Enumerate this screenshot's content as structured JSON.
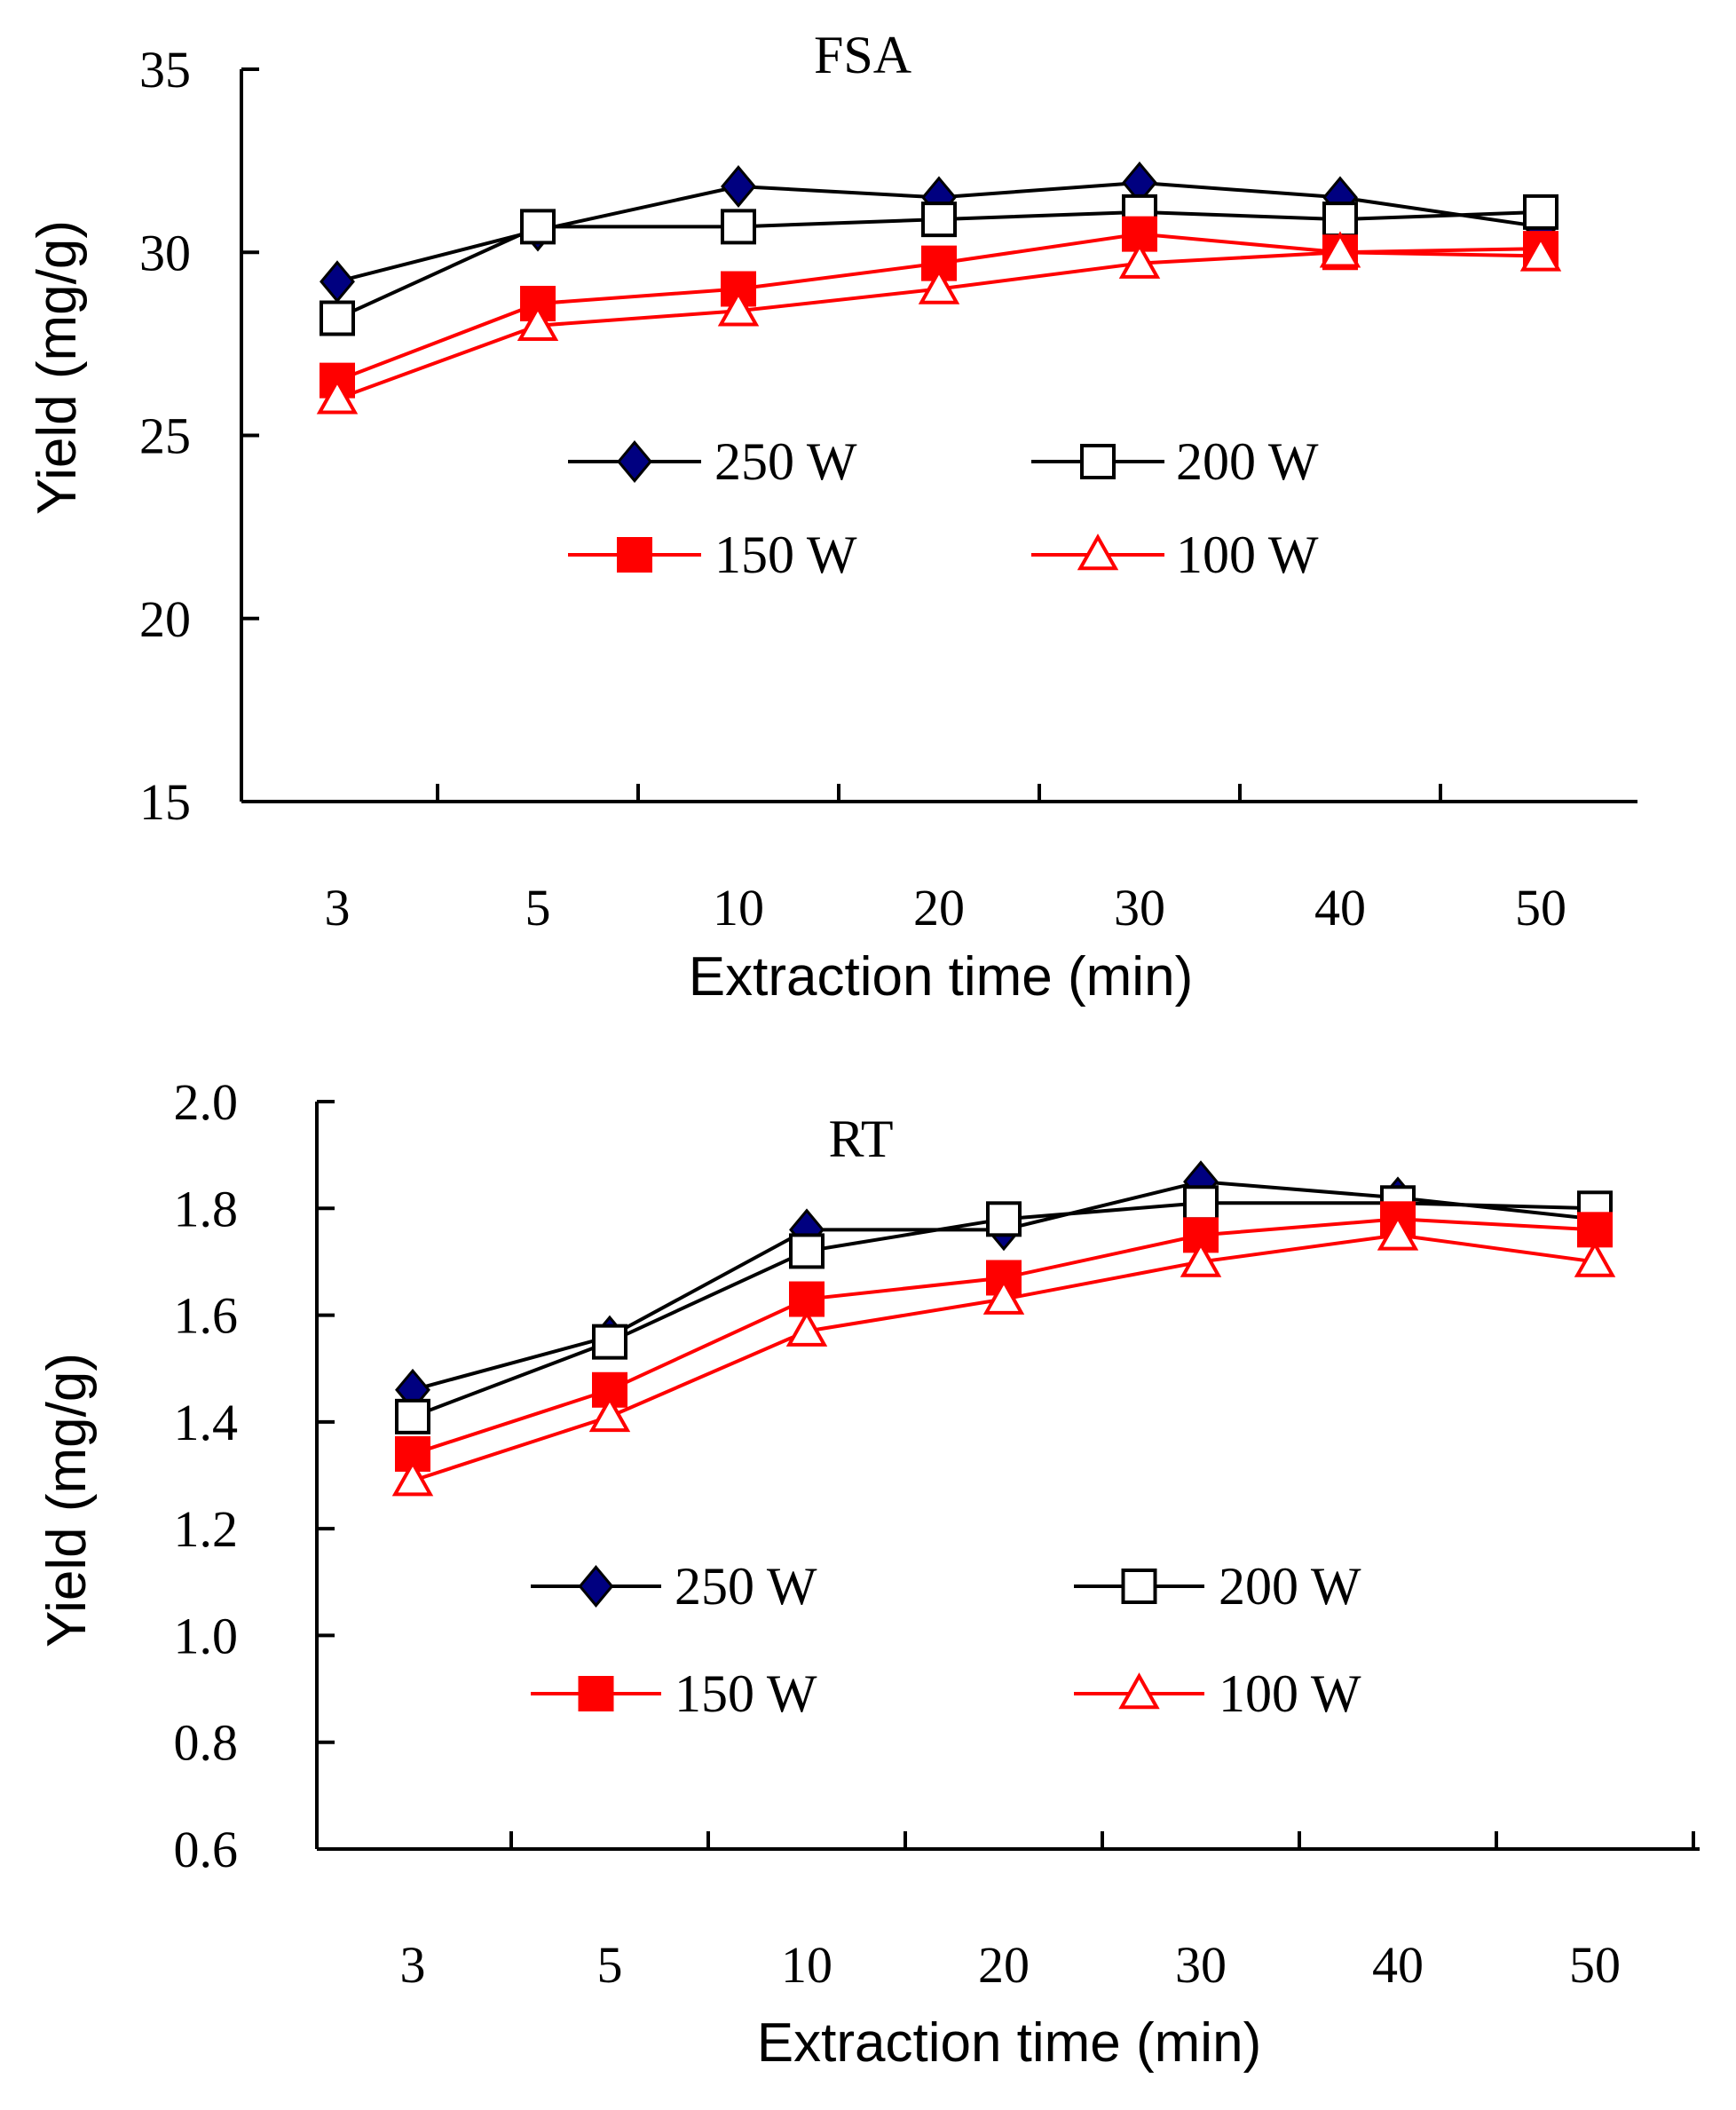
{
  "colors": {
    "black": "#000000",
    "red": "#ff0000",
    "navy": "#000080",
    "white": "#ffffff"
  },
  "chart_data": [
    {
      "type": "line",
      "title": "FSA",
      "xlabel": "Extraction time (min)",
      "ylabel": "Yield (mg/g)",
      "categories": [
        "3",
        "5",
        "10",
        "20",
        "30",
        "40",
        "50"
      ],
      "ylim": [
        15,
        35
      ],
      "yticks": [
        15,
        20,
        25,
        30,
        35
      ],
      "ytick_labels": [
        "15",
        "20",
        "25",
        "30",
        "35"
      ],
      "grid": false,
      "legend": "center",
      "series": [
        {
          "name": "250 W",
          "marker": "diamond",
          "color": "#000000",
          "fill": "#000080",
          "values": [
            29.2,
            30.6,
            31.8,
            31.5,
            31.9,
            31.5,
            30.7
          ]
        },
        {
          "name": "200 W",
          "marker": "square-open",
          "color": "#000000",
          "fill": "#ffffff",
          "values": [
            28.2,
            30.7,
            30.7,
            30.9,
            31.1,
            30.9,
            31.1
          ]
        },
        {
          "name": "150 W",
          "marker": "square",
          "color": "#ff0000",
          "fill": "#ff0000",
          "values": [
            26.5,
            28.6,
            29.0,
            29.7,
            30.5,
            30.0,
            30.1
          ]
        },
        {
          "name": "100 W",
          "marker": "triangle-open",
          "color": "#ff0000",
          "fill": "#ffffff",
          "values": [
            26.0,
            28.0,
            28.4,
            29.0,
            29.7,
            30.0,
            29.9
          ]
        }
      ]
    },
    {
      "type": "line",
      "title": "RT",
      "xlabel": "Extraction time (min)",
      "ylabel": "Yield (mg/g)",
      "categories": [
        "3",
        "5",
        "10",
        "20",
        "30",
        "40",
        "50"
      ],
      "ylim": [
        0.6,
        2.0
      ],
      "yticks": [
        0.6,
        0.8,
        1.0,
        1.2,
        1.4,
        1.6,
        1.8,
        2.0
      ],
      "ytick_labels": [
        "0.6",
        "0.8",
        "1.0",
        "1.2",
        "1.4",
        "1.6",
        "1.8",
        "2.0"
      ],
      "grid": false,
      "legend": "center",
      "series": [
        {
          "name": "250 W",
          "marker": "diamond",
          "color": "#000000",
          "fill": "#000080",
          "values": [
            1.46,
            1.56,
            1.76,
            1.76,
            1.85,
            1.82,
            1.78
          ]
        },
        {
          "name": "200 W",
          "marker": "square-open",
          "color": "#000000",
          "fill": "#ffffff",
          "values": [
            1.41,
            1.55,
            1.72,
            1.78,
            1.81,
            1.81,
            1.8
          ]
        },
        {
          "name": "150 W",
          "marker": "square",
          "color": "#ff0000",
          "fill": "#ff0000",
          "values": [
            1.34,
            1.46,
            1.63,
            1.67,
            1.75,
            1.78,
            1.76
          ]
        },
        {
          "name": "100 W",
          "marker": "triangle-open",
          "color": "#ff0000",
          "fill": "#ffffff",
          "values": [
            1.29,
            1.41,
            1.57,
            1.63,
            1.7,
            1.75,
            1.7
          ]
        }
      ]
    }
  ]
}
